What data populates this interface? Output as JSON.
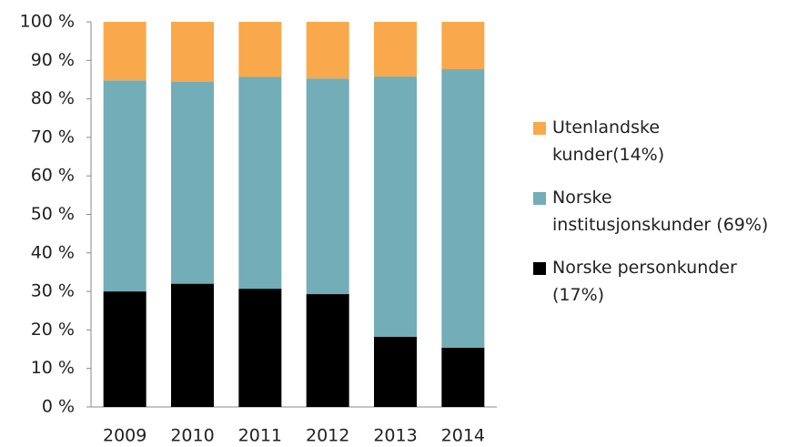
{
  "chart_data": {
    "type": "stacked_bar",
    "categories": [
      "2009",
      "2010",
      "2011",
      "2012",
      "2013",
      "2014"
    ],
    "series": [
      {
        "name": "Norske personkunder\n(17%)",
        "color": "#000000",
        "values": [
          30,
          32,
          30.7,
          29.3,
          18.2,
          15.4
        ]
      },
      {
        "name": "Norske\ninstitusjonskunder (69%)",
        "color": "#73adb8",
        "values": [
          54.8,
          52.4,
          55,
          56,
          67.6,
          72.3
        ]
      },
      {
        "name": "Utenlandske\nkunder(14%)",
        "color": "#f9a94b",
        "values": [
          15.2,
          15.6,
          14.3,
          14.7,
          14.2,
          12.3
        ]
      }
    ],
    "ylim": [
      0,
      100
    ],
    "yticks": [
      {
        "value": 0,
        "label": "0 %"
      },
      {
        "value": 10,
        "label": "10 %"
      },
      {
        "value": 20,
        "label": "20 %"
      },
      {
        "value": 30,
        "label": "30 %"
      },
      {
        "value": 40,
        "label": "40 %"
      },
      {
        "value": 50,
        "label": "50 %"
      },
      {
        "value": 60,
        "label": "60 %"
      },
      {
        "value": 70,
        "label": "70 %"
      },
      {
        "value": 80,
        "label": "80 %"
      },
      {
        "value": 90,
        "label": "90 %"
      },
      {
        "value": 100,
        "label": "100 %"
      }
    ],
    "legend": "right"
  }
}
